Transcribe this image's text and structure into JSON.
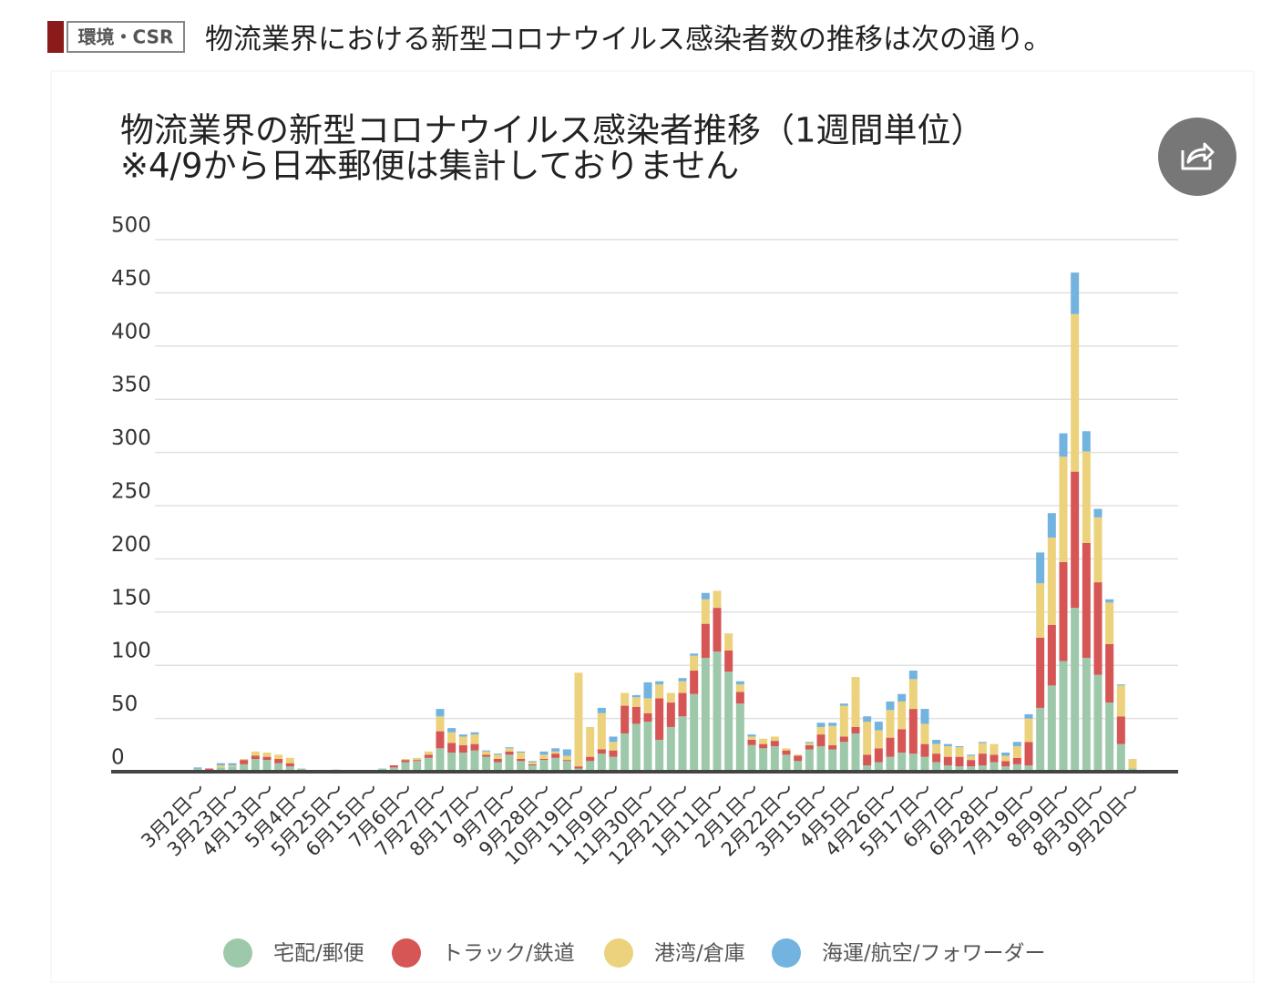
{
  "header": {
    "tag": "環境・CSR",
    "text": "物流業界における新型コロナウイルス感染者数の推移は次の通り。"
  },
  "chart_data": {
    "type": "bar",
    "stacked": true,
    "title": "物流業界の新型コロナウイルス感染者推移（1週間単位）",
    "subtitle": "※4/9から日本郵便は集計しておりません",
    "categories": [
      "3月2日〜",
      null,
      null,
      "3月23日〜",
      null,
      null,
      "4月13日〜",
      null,
      null,
      "5月4日〜",
      null,
      null,
      "5月25日〜",
      null,
      null,
      "6月15日〜",
      null,
      null,
      "7月6日〜",
      null,
      null,
      "7月27日〜",
      null,
      null,
      "8月17日〜",
      null,
      null,
      "9月7日〜",
      null,
      null,
      "9月28日〜",
      null,
      null,
      "10月19日〜",
      null,
      null,
      "11月9日〜",
      null,
      null,
      "11月30日〜",
      null,
      null,
      "12月21日〜",
      null,
      null,
      "1月11日〜",
      null,
      null,
      "2月1日〜",
      null,
      null,
      "2月22日〜",
      null,
      null,
      "3月15日〜",
      null,
      null,
      "4月5日〜",
      null,
      null,
      "4月26日〜",
      null,
      null,
      "5月17日〜",
      null,
      null,
      "6月7日〜",
      null,
      null,
      "6月28日〜",
      null,
      null,
      "7月19日〜",
      null,
      null,
      "8月9日〜",
      null,
      null,
      "8月30日〜",
      null,
      null,
      "9月20日〜"
    ],
    "series": [
      {
        "name": "宅配/郵便",
        "color": "#9dc9aa",
        "values": [
          3,
          1,
          4,
          5,
          7,
          12,
          11,
          8,
          5,
          3,
          0,
          0,
          2,
          0,
          0,
          0,
          3,
          4,
          9,
          10,
          13,
          22,
          18,
          18,
          20,
          14,
          9,
          16,
          10,
          6,
          11,
          13,
          10,
          3,
          10,
          17,
          14,
          36,
          45,
          47,
          30,
          42,
          52,
          73,
          107,
          113,
          94,
          64,
          25,
          22,
          24,
          16,
          10,
          21,
          24,
          21,
          28,
          36,
          6,
          9,
          14,
          18,
          17,
          14,
          9,
          6,
          5,
          5,
          6,
          9,
          5,
          7,
          6,
          60,
          81,
          104,
          154,
          107,
          91,
          65,
          26,
          3
        ]
      },
      {
        "name": "トラック/鉄道",
        "color": "#d65555",
        "values": [
          0,
          2,
          0,
          0,
          4,
          3,
          3,
          4,
          3,
          0,
          0,
          0,
          0,
          0,
          0,
          0,
          0,
          2,
          2,
          1,
          3,
          16,
          9,
          7,
          6,
          2,
          3,
          3,
          2,
          1,
          1,
          4,
          1,
          2,
          4,
          4,
          6,
          26,
          16,
          8,
          39,
          23,
          22,
          22,
          32,
          41,
          20,
          11,
          5,
          4,
          5,
          4,
          5,
          4,
          11,
          4,
          5,
          6,
          10,
          13,
          18,
          22,
          42,
          12,
          8,
          8,
          9,
          6,
          11,
          7,
          5,
          6,
          22,
          66,
          57,
          93,
          128,
          108,
          87,
          55,
          26,
          0
        ]
      },
      {
        "name": "港湾/倉庫",
        "color": "#ecd27c",
        "values": [
          0,
          0,
          2,
          1,
          1,
          4,
          4,
          4,
          5,
          0,
          0,
          0,
          0,
          0,
          0,
          0,
          0,
          0,
          1,
          2,
          3,
          14,
          10,
          8,
          9,
          3,
          4,
          3,
          6,
          2,
          4,
          2,
          4,
          88,
          28,
          34,
          8,
          12,
          9,
          14,
          13,
          9,
          11,
          14,
          23,
          16,
          16,
          7,
          3,
          5,
          4,
          2,
          1,
          2,
          7,
          18,
          29,
          47,
          31,
          17,
          26,
          26,
          28,
          19,
          9,
          10,
          9,
          4,
          10,
          10,
          5,
          11,
          22,
          51,
          82,
          99,
          148,
          86,
          61,
          39,
          29,
          9
        ]
      },
      {
        "name": "海運/航空/フォワーダー",
        "color": "#72b3e0",
        "values": [
          1,
          0,
          2,
          2,
          0,
          0,
          0,
          0,
          0,
          0,
          0,
          0,
          0,
          0,
          0,
          0,
          0,
          0,
          0,
          0,
          0,
          7,
          4,
          2,
          2,
          1,
          1,
          1,
          1,
          1,
          3,
          3,
          6,
          0,
          0,
          5,
          5,
          0,
          2,
          15,
          3,
          0,
          3,
          2,
          6,
          0,
          0,
          3,
          2,
          0,
          0,
          0,
          0,
          1,
          4,
          3,
          2,
          0,
          5,
          8,
          8,
          7,
          8,
          14,
          4,
          2,
          1,
          1,
          1,
          0,
          3,
          4,
          4,
          29,
          23,
          22,
          39,
          19,
          8,
          3,
          1,
          0
        ]
      }
    ],
    "ylim": [
      0,
      500
    ],
    "yticks": [
      0,
      50,
      100,
      150,
      200,
      250,
      300,
      350,
      400,
      450,
      500
    ],
    "grid": true,
    "legend": "bottom"
  }
}
